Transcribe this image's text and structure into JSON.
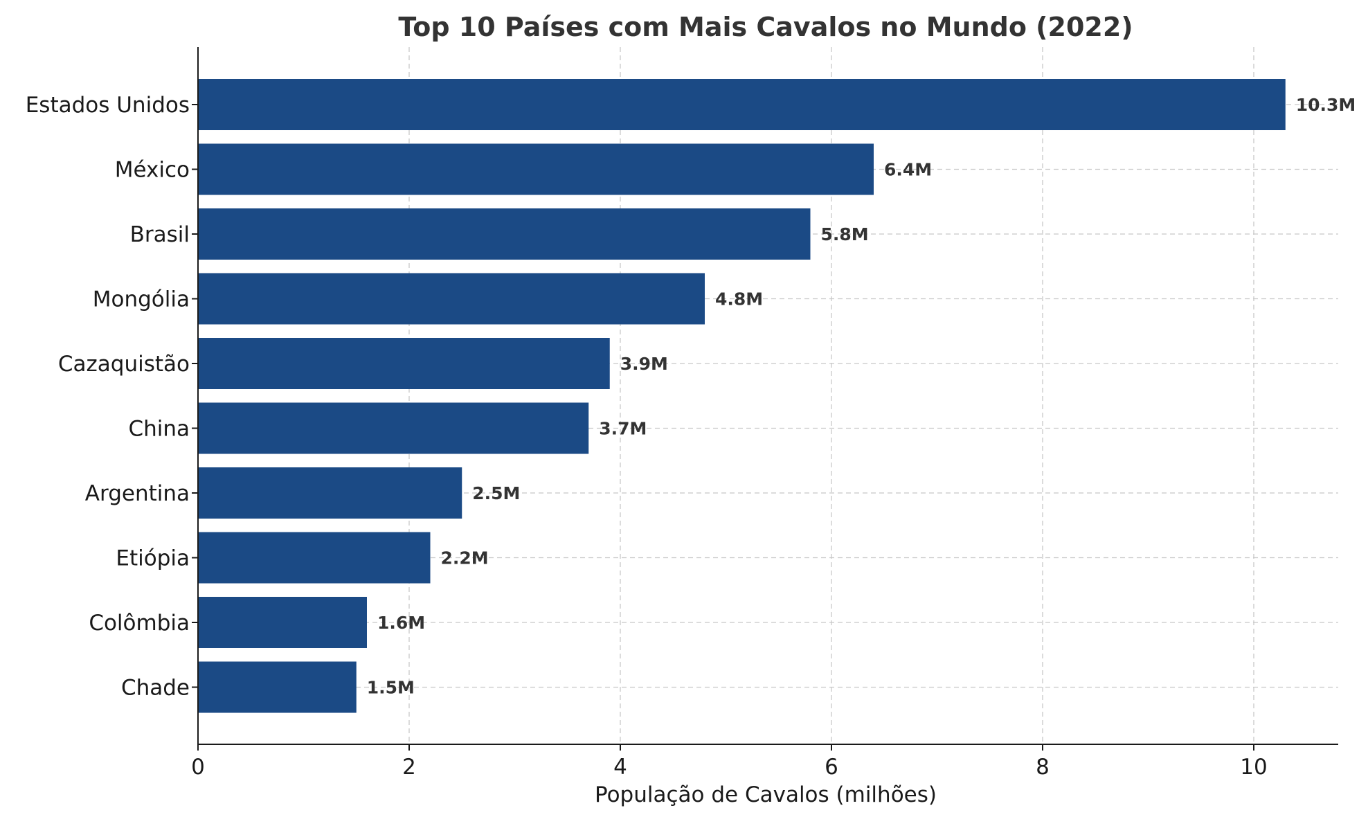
{
  "chart_data": {
    "type": "bar",
    "orientation": "horizontal",
    "title": "Top 10 Países com Mais Cavalos no Mundo (2022)",
    "xlabel": "População de Cavalos (milhões)",
    "ylabel": "",
    "xlim": [
      0,
      10.8
    ],
    "xticks": [
      0,
      2,
      4,
      6,
      8,
      10
    ],
    "grid": true,
    "categories": [
      "Estados Unidos",
      "México",
      "Brasil",
      "Mongólia",
      "Cazaquistão",
      "China",
      "Argentina",
      "Etiópia",
      "Colômbia",
      "Chade"
    ],
    "values": [
      10.3,
      6.4,
      5.8,
      4.8,
      3.9,
      3.7,
      2.5,
      2.2,
      1.6,
      1.5
    ],
    "value_labels": [
      "10.3M",
      "6.4M",
      "5.8M",
      "4.8M",
      "3.9M",
      "3.7M",
      "2.5M",
      "2.2M",
      "1.6M",
      "1.5M"
    ],
    "bar_color": "#1b4a85"
  }
}
